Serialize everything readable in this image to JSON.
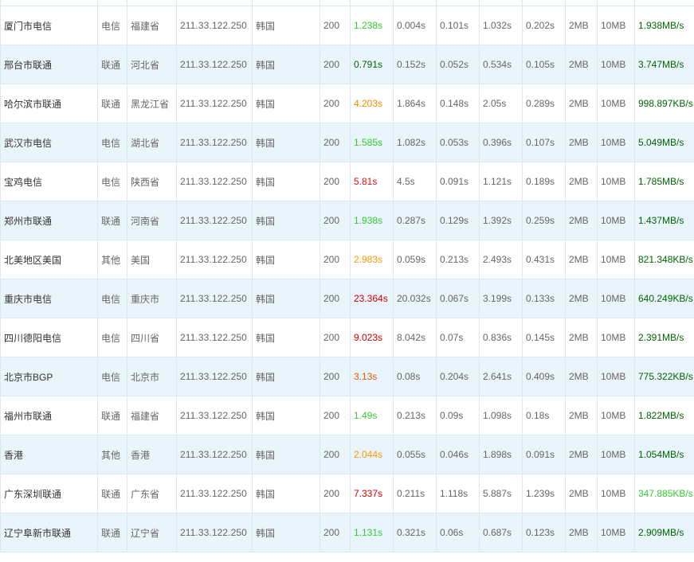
{
  "colors": {
    "fast_green": "#33cc33",
    "medium_orange": "#ff8800",
    "slow_red": "#dd1111",
    "good_speed": "#006600",
    "bright_speed": "#33cc33",
    "row_alt_bg": "#eaf4fb",
    "border": "#d6eaf0"
  },
  "rows": [
    {
      "node": "厦门市电信",
      "isp": "电信",
      "region": "福建省",
      "ip": "211.33.122.250",
      "ip_loc": "韩国",
      "status": "200",
      "total_time": "1.238s",
      "total_color": "#33cc33",
      "resolve": "0.004s",
      "connect": "0.101s",
      "download": "1.032s",
      "first_byte": "0.202s",
      "size": "2MB",
      "limit": "10MB",
      "speed": "1.938MB/s",
      "speed_color": "#006600"
    },
    {
      "node": "邢台市联通",
      "isp": "联通",
      "region": "河北省",
      "ip": "211.33.122.250",
      "ip_loc": "韩国",
      "status": "200",
      "total_time": "0.791s",
      "total_color": "#006600",
      "resolve": "0.152s",
      "connect": "0.052s",
      "download": "0.534s",
      "first_byte": "0.105s",
      "size": "2MB",
      "limit": "10MB",
      "speed": "3.747MB/s",
      "speed_color": "#006600"
    },
    {
      "node": "哈尔滨市联通",
      "isp": "联通",
      "region": "黑龙江省",
      "ip": "211.33.122.250",
      "ip_loc": "韩国",
      "status": "200",
      "total_time": "4.203s",
      "total_color": "#ff8800",
      "resolve": "1.864s",
      "connect": "0.148s",
      "download": "2.05s",
      "first_byte": "0.289s",
      "size": "2MB",
      "limit": "10MB",
      "speed": "998.897KB/s",
      "speed_color": "#006600"
    },
    {
      "node": "武汉市电信",
      "isp": "电信",
      "region": "湖北省",
      "ip": "211.33.122.250",
      "ip_loc": "韩国",
      "status": "200",
      "total_time": "1.585s",
      "total_color": "#33cc33",
      "resolve": "1.082s",
      "connect": "0.053s",
      "download": "0.396s",
      "first_byte": "0.107s",
      "size": "2MB",
      "limit": "10MB",
      "speed": "5.049MB/s",
      "speed_color": "#006600"
    },
    {
      "node": "宝鸡电信",
      "isp": "电信",
      "region": "陕西省",
      "ip": "211.33.122.250",
      "ip_loc": "韩国",
      "status": "200",
      "total_time": "5.81s",
      "total_color": "#dd1111",
      "resolve": "4.5s",
      "connect": "0.091s",
      "download": "1.121s",
      "first_byte": "0.189s",
      "size": "2MB",
      "limit": "10MB",
      "speed": "1.785MB/s",
      "speed_color": "#006600"
    },
    {
      "node": "郑州市联通",
      "isp": "联通",
      "region": "河南省",
      "ip": "211.33.122.250",
      "ip_loc": "韩国",
      "status": "200",
      "total_time": "1.938s",
      "total_color": "#33cc33",
      "resolve": "0.287s",
      "connect": "0.129s",
      "download": "1.392s",
      "first_byte": "0.259s",
      "size": "2MB",
      "limit": "10MB",
      "speed": "1.437MB/s",
      "speed_color": "#006600"
    },
    {
      "node": "北美地区美国",
      "isp": "其他",
      "region": "美国",
      "ip": "211.33.122.250",
      "ip_loc": "韩国",
      "status": "200",
      "total_time": "2.983s",
      "total_color": "#ff9900",
      "resolve": "0.059s",
      "connect": "0.213s",
      "download": "2.493s",
      "first_byte": "0.431s",
      "size": "2MB",
      "limit": "10MB",
      "speed": "821.348KB/s",
      "speed_color": "#006600"
    },
    {
      "node": "重庆市电信",
      "isp": "电信",
      "region": "重庆市",
      "ip": "211.33.122.250",
      "ip_loc": "韩国",
      "status": "200",
      "total_time": "23.364s",
      "total_color": "#cc0000",
      "resolve": "20.032s",
      "connect": "0.067s",
      "download": "3.199s",
      "first_byte": "0.133s",
      "size": "2MB",
      "limit": "10MB",
      "speed": "640.249KB/s",
      "speed_color": "#006600"
    },
    {
      "node": "四川德阳电信",
      "isp": "电信",
      "region": "四川省",
      "ip": "211.33.122.250",
      "ip_loc": "韩国",
      "status": "200",
      "total_time": "9.023s",
      "total_color": "#cc0000",
      "resolve": "8.042s",
      "connect": "0.07s",
      "download": "0.836s",
      "first_byte": "0.145s",
      "size": "2MB",
      "limit": "10MB",
      "speed": "2.391MB/s",
      "speed_color": "#006600"
    },
    {
      "node": "北京市BGP",
      "isp": "电信",
      "region": "北京市",
      "ip": "211.33.122.250",
      "ip_loc": "韩国",
      "status": "200",
      "total_time": "3.13s",
      "total_color": "#ee5500",
      "resolve": "0.08s",
      "connect": "0.204s",
      "download": "2.641s",
      "first_byte": "0.409s",
      "size": "2MB",
      "limit": "10MB",
      "speed": "775.322KB/s",
      "speed_color": "#006600"
    },
    {
      "node": "福州市联通",
      "isp": "联通",
      "region": "福建省",
      "ip": "211.33.122.250",
      "ip_loc": "韩国",
      "status": "200",
      "total_time": "1.49s",
      "total_color": "#33cc33",
      "resolve": "0.213s",
      "connect": "0.09s",
      "download": "1.098s",
      "first_byte": "0.18s",
      "size": "2MB",
      "limit": "10MB",
      "speed": "1.822MB/s",
      "speed_color": "#006600"
    },
    {
      "node": "香港",
      "isp": "其他",
      "region": "香港",
      "ip": "211.33.122.250",
      "ip_loc": "韩国",
      "status": "200",
      "total_time": "2.044s",
      "total_color": "#ff9900",
      "resolve": "0.055s",
      "connect": "0.046s",
      "download": "1.898s",
      "first_byte": "0.091s",
      "size": "2MB",
      "limit": "10MB",
      "speed": "1.054MB/s",
      "speed_color": "#006600"
    },
    {
      "node": "广东深圳联通",
      "isp": "联通",
      "region": "广东省",
      "ip": "211.33.122.250",
      "ip_loc": "韩国",
      "status": "200",
      "total_time": "7.337s",
      "total_color": "#cc0000",
      "resolve": "0.211s",
      "connect": "1.118s",
      "download": "5.887s",
      "first_byte": "1.239s",
      "size": "2MB",
      "limit": "10MB",
      "speed": "347.885KB/s",
      "speed_color": "#33cc33"
    },
    {
      "node": "辽宁阜新市联通",
      "isp": "联通",
      "region": "辽宁省",
      "ip": "211.33.122.250",
      "ip_loc": "韩国",
      "status": "200",
      "total_time": "1.131s",
      "total_color": "#33cc33",
      "resolve": "0.321s",
      "connect": "0.06s",
      "download": "0.687s",
      "first_byte": "0.123s",
      "size": "2MB",
      "limit": "10MB",
      "speed": "2.909MB/s",
      "speed_color": "#006600"
    }
  ]
}
